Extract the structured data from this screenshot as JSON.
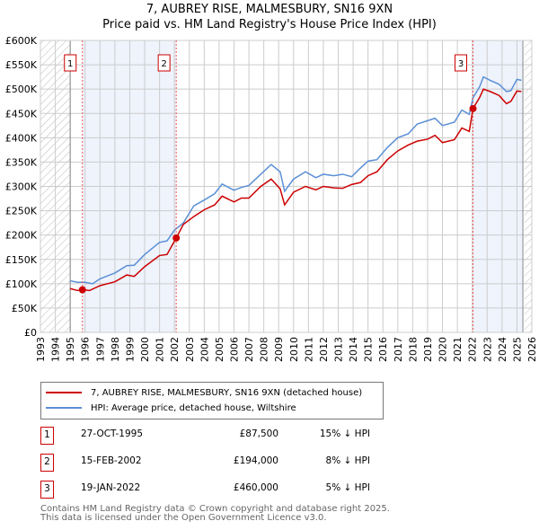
{
  "chart_data": {
    "type": "line",
    "title": "7, AUBREY RISE, MALMESBURY, SN16 9XN",
    "subtitle": "Price paid vs. HM Land Registry's House Price Index (HPI)",
    "xlim": [
      1993,
      2026
    ],
    "ylim": [
      0,
      600000
    ],
    "x_ticks": [
      "1993",
      "1994",
      "1995",
      "1996",
      "1997",
      "1998",
      "1999",
      "2000",
      "2001",
      "2002",
      "2003",
      "2004",
      "2005",
      "2006",
      "2007",
      "2008",
      "2009",
      "2010",
      "2011",
      "2012",
      "2013",
      "2014",
      "2015",
      "2016",
      "2017",
      "2018",
      "2019",
      "2020",
      "2021",
      "2022",
      "2023",
      "2024",
      "2025",
      "2026"
    ],
    "y_ticks": [
      {
        "v": 0,
        "label": "£0"
      },
      {
        "v": 50000,
        "label": "£50K"
      },
      {
        "v": 100000,
        "label": "£100K"
      },
      {
        "v": 150000,
        "label": "£150K"
      },
      {
        "v": 200000,
        "label": "£200K"
      },
      {
        "v": 250000,
        "label": "£250K"
      },
      {
        "v": 300000,
        "label": "£300K"
      },
      {
        "v": 350000,
        "label": "£350K"
      },
      {
        "v": 400000,
        "label": "£400K"
      },
      {
        "v": 450000,
        "label": "£450K"
      },
      {
        "v": 500000,
        "label": "£500K"
      },
      {
        "v": 550000,
        "label": "£550K"
      },
      {
        "v": 600000,
        "label": "£600K"
      }
    ],
    "grid": true,
    "hatched_ranges": [
      [
        1993,
        1995
      ],
      [
        2025.5,
        2026
      ]
    ],
    "shaded_ranges": [
      [
        1995.82,
        2002.12
      ],
      [
        2022.05,
        2025.4
      ]
    ],
    "series": [
      {
        "name": "7, AUBREY RISE, MALMESBURY, SN16 9XN (detached house)",
        "color": "#cc0000",
        "x": [
          1995,
          1995.5,
          1995.82,
          1996.3,
          1997,
          1998,
          1998.8,
          1999.3,
          2000,
          2001,
          2001.5,
          2002.12,
          2002.6,
          2003.3,
          2004,
          2004.7,
          2005.2,
          2006,
          2006.5,
          2007,
          2007.8,
          2008.5,
          2009.1,
          2009.4,
          2010,
          2010.8,
          2011.5,
          2012,
          2012.7,
          2013.3,
          2013.9,
          2014.5,
          2015,
          2015.6,
          2016.3,
          2017,
          2017.7,
          2018.3,
          2019,
          2019.5,
          2020,
          2020.8,
          2021.3,
          2021.8,
          2022.05,
          2022.5,
          2022.75,
          2023.2,
          2023.8,
          2024.3,
          2024.6,
          2025,
          2025.3
        ],
        "y": [
          90000,
          86000,
          87500,
          86000,
          96000,
          104000,
          118000,
          115000,
          135000,
          158000,
          160000,
          194000,
          222000,
          238000,
          252000,
          262000,
          280000,
          268000,
          276000,
          276000,
          300000,
          315000,
          295000,
          262000,
          288000,
          300000,
          293000,
          300000,
          297000,
          296000,
          304000,
          308000,
          322000,
          330000,
          355000,
          373000,
          385000,
          393000,
          397000,
          405000,
          390000,
          396000,
          420000,
          413000,
          460000,
          483000,
          500000,
          495000,
          487000,
          470000,
          475000,
          496000,
          495000
        ]
      },
      {
        "name": "HPI: Average price, detached house, Wiltshire",
        "color": "#5b8fd6",
        "x": [
          1995,
          1995.5,
          1996,
          1996.5,
          1997,
          1998,
          1998.8,
          1999.3,
          2000,
          2001,
          2001.5,
          2002,
          2002.6,
          2003.3,
          2004,
          2004.7,
          2005.2,
          2006,
          2006.5,
          2007,
          2007.8,
          2008.5,
          2009.1,
          2009.4,
          2010,
          2010.8,
          2011.5,
          2012,
          2012.7,
          2013.3,
          2013.9,
          2014.5,
          2015,
          2015.6,
          2016.3,
          2017,
          2017.7,
          2018.3,
          2019,
          2019.5,
          2020,
          2020.8,
          2021.3,
          2021.8,
          2022.05,
          2022.5,
          2022.75,
          2023.2,
          2023.8,
          2024.3,
          2024.6,
          2025,
          2025.3
        ],
        "y": [
          106000,
          103000,
          103000,
          100000,
          110000,
          122000,
          137000,
          138000,
          160000,
          185000,
          188000,
          210000,
          225000,
          260000,
          272000,
          285000,
          305000,
          292000,
          298000,
          302000,
          325000,
          345000,
          330000,
          290000,
          315000,
          330000,
          318000,
          325000,
          322000,
          325000,
          320000,
          338000,
          352000,
          355000,
          380000,
          400000,
          408000,
          428000,
          435000,
          440000,
          425000,
          432000,
          457000,
          448000,
          482000,
          505000,
          525000,
          518000,
          510000,
          495000,
          497000,
          520000,
          518000
        ]
      }
    ],
    "sales": [
      {
        "label": "1",
        "x": 1995.82,
        "y": 87500,
        "date": "27-OCT-1995",
        "price": "£87,500",
        "hpi": "15% ↓ HPI"
      },
      {
        "label": "2",
        "x": 2002.12,
        "y": 194000,
        "date": "15-FEB-2002",
        "price": "£194,000",
        "hpi": "8% ↓ HPI"
      },
      {
        "label": "3",
        "x": 2022.05,
        "y": 460000,
        "date": "19-JAN-2022",
        "price": "£460,000",
        "hpi": "5% ↓ HPI"
      }
    ]
  },
  "footer": {
    "line1": "Contains HM Land Registry data © Crown copyright and database right 2025.",
    "line2": "This data is licensed under the Open Government Licence v3.0."
  }
}
